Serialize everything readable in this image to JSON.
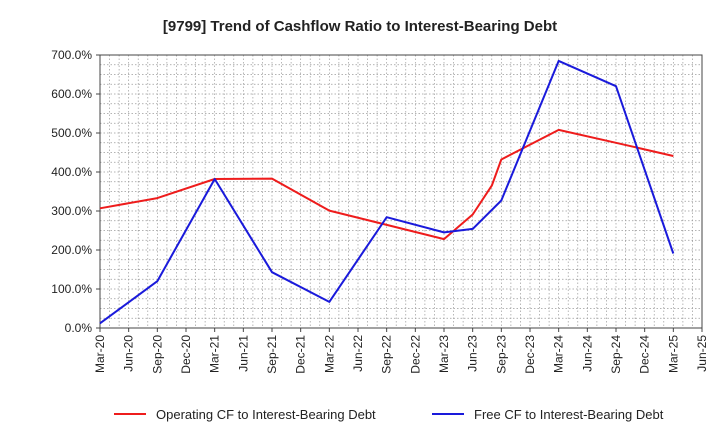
{
  "chart_data": {
    "type": "line",
    "title": "[9799]  Trend of Cashflow Ratio to Interest-Bearing Debt",
    "xlabel": "",
    "ylabel": "",
    "ylim": [
      0,
      700
    ],
    "y_ticks": [
      0,
      100,
      200,
      300,
      400,
      500,
      600,
      700
    ],
    "y_tick_labels": [
      "0.0%",
      "100.0%",
      "200.0%",
      "300.0%",
      "400.0%",
      "500.0%",
      "600.0%",
      "700.0%"
    ],
    "x_tick_labels": [
      "Mar-20",
      "Jun-20",
      "Sep-20",
      "Dec-20",
      "Mar-21",
      "Jun-21",
      "Sep-21",
      "Dec-21",
      "Mar-22",
      "Jun-22",
      "Sep-22",
      "Dec-22",
      "Mar-23",
      "Jun-23",
      "Sep-23",
      "Dec-23",
      "Mar-24",
      "Jun-24",
      "Sep-24",
      "Dec-24",
      "Mar-25",
      "Jun-25"
    ],
    "grid": true,
    "legend_position": "bottom",
    "series": [
      {
        "name": "Operating CF to Interest-Bearing Debt",
        "color": "#ee1c1c",
        "points": [
          {
            "x": "Mar-20",
            "y": 307
          },
          {
            "x": "Sep-20",
            "y": 333
          },
          {
            "x": "Mar-21",
            "y": 382
          },
          {
            "x": "Sep-21",
            "y": 383
          },
          {
            "x": "Mar-22",
            "y": 301
          },
          {
            "x": "Mar-23",
            "y": 228
          },
          {
            "x": "Jun-23",
            "y": 291
          },
          {
            "x": "Aug-23",
            "y": 365
          },
          {
            "x": "Sep-23",
            "y": 432
          },
          {
            "x": "Mar-24",
            "y": 508
          },
          {
            "x": "Sep-24",
            "y": 475
          },
          {
            "x": "Mar-25",
            "y": 441
          }
        ]
      },
      {
        "name": "Free CF to Interest-Bearing Debt",
        "color": "#1a1adb",
        "points": [
          {
            "x": "Mar-20",
            "y": 12
          },
          {
            "x": "Sep-20",
            "y": 120
          },
          {
            "x": "Mar-21",
            "y": 382
          },
          {
            "x": "Sep-21",
            "y": 143
          },
          {
            "x": "Mar-22",
            "y": 67
          },
          {
            "x": "Sep-22",
            "y": 284
          },
          {
            "x": "Mar-23",
            "y": 245
          },
          {
            "x": "Jun-23",
            "y": 254
          },
          {
            "x": "Sep-23",
            "y": 327
          },
          {
            "x": "Mar-24",
            "y": 685
          },
          {
            "x": "Sep-24",
            "y": 620
          },
          {
            "x": "Mar-25",
            "y": 191
          }
        ]
      }
    ]
  }
}
